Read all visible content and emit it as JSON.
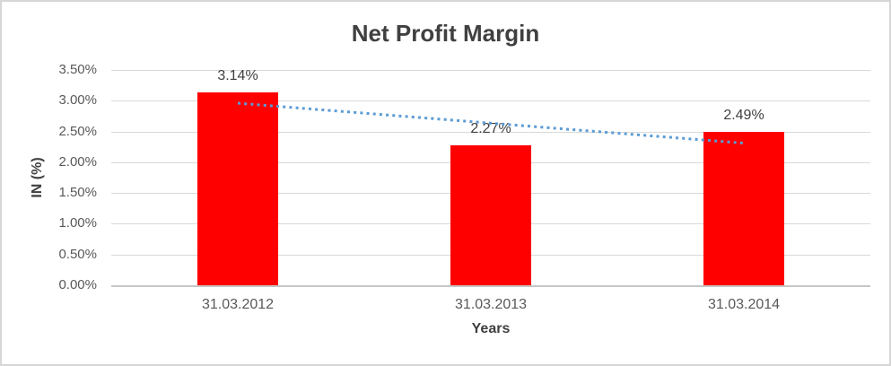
{
  "frame": {
    "background": "#FFFFFF",
    "border_color": "#D6D6D6"
  },
  "chart_data": {
    "type": "bar",
    "title": "Net Profit Margin",
    "xlabel": "Years",
    "ylabel": "IN (%)",
    "categories": [
      "31.03.2012",
      "31.03.2013",
      "31.03.2014"
    ],
    "values": [
      3.14,
      2.27,
      2.49
    ],
    "data_labels": [
      "3.14%",
      "2.27%",
      "2.49%"
    ],
    "ylim": [
      0,
      3.5
    ],
    "y_tick_step": 0.5,
    "y_tick_labels": [
      "0.00%",
      "0.50%",
      "1.00%",
      "1.50%",
      "2.00%",
      "2.50%",
      "3.00%",
      "3.50%"
    ],
    "grid": true,
    "legend": "none",
    "bar_color": "#FF0000",
    "trendline": {
      "type": "linear",
      "style": "dotted",
      "color": "#5B9BD5",
      "start_value": 2.96,
      "end_value": 2.31
    },
    "colors": {
      "gridline": "#D9D9D9",
      "axis_line": "#C6C6C6",
      "title_text": "#404040",
      "tick_text": "#595959",
      "data_label_text": "#404040",
      "axis_title_text": "#404040"
    }
  }
}
